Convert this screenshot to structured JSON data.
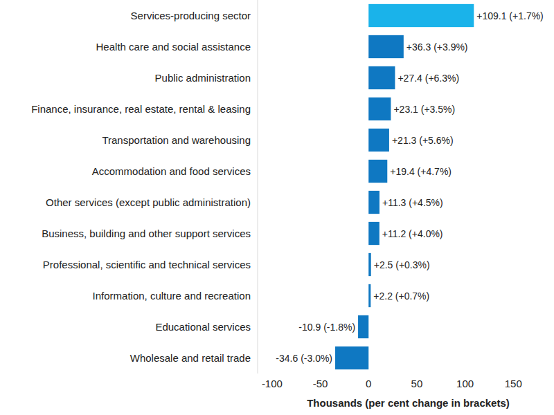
{
  "chart_data": {
    "type": "bar",
    "orientation": "horizontal",
    "x_label": "Thousands (per cent change in brackets)",
    "categories": [
      "Services-producing sector",
      "Health care and social assistance",
      "Public administration",
      "Finance, insurance, real estate, rental & leasing",
      "Transportation and warehousing",
      "Accommodation and food services",
      "Other services (except public administration)",
      "Business, building and other support services",
      "Professional, scientific and technical services",
      "Information, culture and recreation",
      "Educational services",
      "Wholesale and retail trade"
    ],
    "values": [
      109.1,
      36.3,
      27.4,
      23.1,
      21.3,
      19.4,
      11.3,
      11.2,
      2.5,
      2.2,
      -10.9,
      -34.6
    ],
    "value_labels": [
      "+109.1 (+1.7%)",
      "+36.3 (+3.9%)",
      "+27.4 (+6.3%)",
      "+23.1 (+3.5%)",
      "+21.3 (+5.6%)",
      "+19.4 (+4.7%)",
      "+11.3 (+4.5%)",
      "+11.2 (+4.0%)",
      "+2.5 (+0.3%)",
      "+2.2 (+0.7%)",
      "-10.9 (-1.8%)",
      "-34.6 (-3.0%)"
    ],
    "colors": [
      "#1ab3ea",
      "#0f78c2",
      "#0f78c2",
      "#0f78c2",
      "#0f78c2",
      "#0f78c2",
      "#0f78c2",
      "#0f78c2",
      "#0f78c2",
      "#0f78c2",
      "#0f78c2",
      "#0f78c2"
    ],
    "xlim": [
      -115,
      190
    ],
    "xticks": [
      -100,
      -50,
      0,
      50,
      100,
      150
    ],
    "grid": false,
    "data_labels": true
  }
}
